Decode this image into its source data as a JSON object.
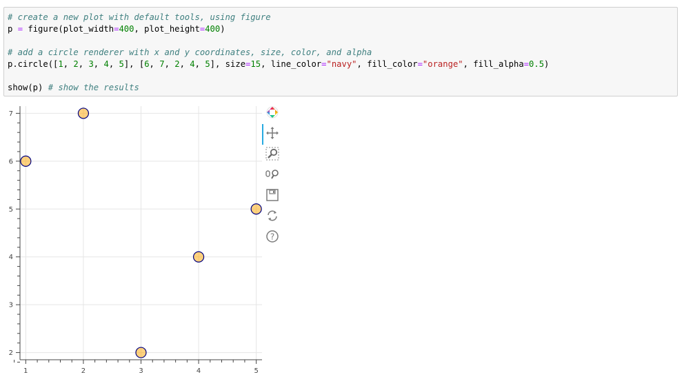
{
  "code_cell": {
    "lines": [
      {
        "tokens": [
          {
            "t": "# create a new plot with default tools, using figure",
            "c": "comment"
          }
        ]
      },
      {
        "tokens": [
          {
            "t": "p ",
            "c": ""
          },
          {
            "t": "=",
            "c": "op"
          },
          {
            "t": " figure(plot_width",
            "c": ""
          },
          {
            "t": "=",
            "c": "op"
          },
          {
            "t": "400",
            "c": "num"
          },
          {
            "t": ", plot_height",
            "c": ""
          },
          {
            "t": "=",
            "c": "op"
          },
          {
            "t": "400",
            "c": "num"
          },
          {
            "t": ")",
            "c": ""
          }
        ]
      },
      {
        "gap": true
      },
      {
        "tokens": [
          {
            "t": "# add a circle renderer with x and y coordinates, size, color, and alpha",
            "c": "comment"
          }
        ]
      },
      {
        "tokens": [
          {
            "t": "p.circle([",
            "c": ""
          },
          {
            "t": "1",
            "c": "num"
          },
          {
            "t": ", ",
            "c": ""
          },
          {
            "t": "2",
            "c": "num"
          },
          {
            "t": ", ",
            "c": ""
          },
          {
            "t": "3",
            "c": "num"
          },
          {
            "t": ", ",
            "c": ""
          },
          {
            "t": "4",
            "c": "num"
          },
          {
            "t": ", ",
            "c": ""
          },
          {
            "t": "5",
            "c": "num"
          },
          {
            "t": "], [",
            "c": ""
          },
          {
            "t": "6",
            "c": "num"
          },
          {
            "t": ", ",
            "c": ""
          },
          {
            "t": "7",
            "c": "num"
          },
          {
            "t": ", ",
            "c": ""
          },
          {
            "t": "2",
            "c": "num"
          },
          {
            "t": ", ",
            "c": ""
          },
          {
            "t": "4",
            "c": "num"
          },
          {
            "t": ", ",
            "c": ""
          },
          {
            "t": "5",
            "c": "num"
          },
          {
            "t": "], size",
            "c": ""
          },
          {
            "t": "=",
            "c": "op"
          },
          {
            "t": "15",
            "c": "num"
          },
          {
            "t": ", line_color",
            "c": ""
          },
          {
            "t": "=",
            "c": "op"
          },
          {
            "t": "\"navy\"",
            "c": "str"
          },
          {
            "t": ", fill_color",
            "c": ""
          },
          {
            "t": "=",
            "c": "op"
          },
          {
            "t": "\"orange\"",
            "c": "str"
          },
          {
            "t": ", fill_alpha",
            "c": ""
          },
          {
            "t": "=",
            "c": "op"
          },
          {
            "t": "0.5",
            "c": "num"
          },
          {
            "t": ")",
            "c": ""
          }
        ]
      },
      {
        "gap": true
      },
      {
        "tokens": [
          {
            "t": "show(p) ",
            "c": ""
          },
          {
            "t": "# show the results",
            "c": "comment"
          }
        ]
      }
    ]
  },
  "chart_data": {
    "type": "scatter",
    "x": [
      1,
      2,
      3,
      4,
      5
    ],
    "y": [
      6,
      7,
      2,
      4,
      5
    ],
    "marker_size": 15,
    "line_color": "navy",
    "fill_color": "orange",
    "fill_alpha": 0.5,
    "xlim": [
      0.9,
      5.1
    ],
    "ylim": [
      1.85,
      7.15
    ],
    "x_ticks": [
      1,
      2,
      3,
      4,
      5
    ],
    "y_ticks": [
      2,
      3,
      4,
      5,
      6,
      7
    ],
    "grid": true,
    "title": "",
    "xlabel": "",
    "ylabel": ""
  },
  "toolbar": {
    "tools": [
      {
        "name": "bokeh-logo-icon",
        "active": false
      },
      {
        "name": "pan-icon",
        "active": true
      },
      {
        "name": "box-zoom-icon",
        "active": false
      },
      {
        "name": "wheel-zoom-icon",
        "active": false
      },
      {
        "name": "save-icon",
        "active": false
      },
      {
        "name": "reset-icon",
        "active": false
      },
      {
        "name": "help-icon",
        "active": false
      }
    ]
  },
  "colors": {
    "marker_line": "#000080",
    "marker_fill": "#ffa500",
    "grid": "#e5e5e5",
    "axis": "#444444",
    "tool_active": "#26aae1"
  }
}
